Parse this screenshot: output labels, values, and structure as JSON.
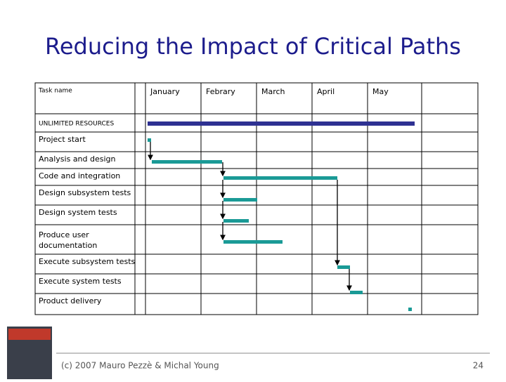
{
  "title": "Reducing the Impact of Critical Paths",
  "table": {
    "task_header": "Task name",
    "months": [
      "January",
      "Febrary",
      "March",
      "April",
      "May"
    ],
    "section": "UNLIMITED RESOURCES",
    "rows": [
      "Project start",
      "Analysis and design",
      "Code and integration",
      "Design subsystem tests",
      "Design system tests",
      "Produce user documentation",
      "Execute subsystem tests",
      "Execute system tests",
      "Product delivery"
    ]
  },
  "footer": {
    "copyright": "(c) 2007 Mauro Pezzè & Michal Young",
    "page": "24"
  }
}
